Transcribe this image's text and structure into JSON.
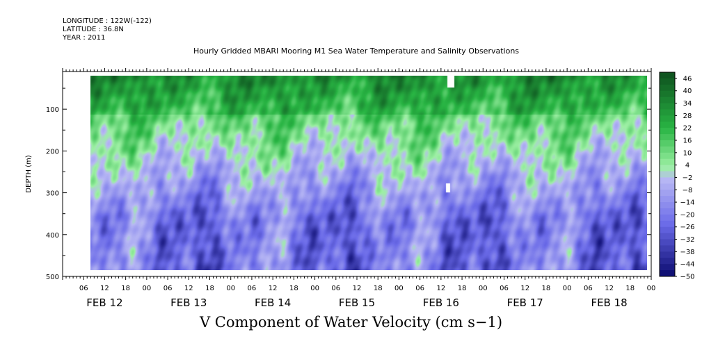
{
  "meta": {
    "longitude": "LONGITUDE : 122W(-122)",
    "latitude": "LATITUDE : 36.8N",
    "year": "YEAR : 2011"
  },
  "title": "Hourly Gridded MBARI Mooring M1 Sea Water Temperature and Salinity Observations",
  "xlabel": "V Component of Water Velocity (cm s−1)",
  "ylabel": "DEPTH (m)",
  "colors": {
    "positive_max": "#0d4f1e",
    "positive_mid": "#28b443",
    "positive_low": "#9df0a4",
    "negative_low": "#b8b8f4",
    "negative_mid": "#6a6ae8",
    "negative_max": "#0a0a6e"
  },
  "chart_data": {
    "type": "heatmap",
    "title": "Hourly Gridded MBARI Mooring M1 Sea Water Temperature and Salinity Observations",
    "xlabel": "V Component of Water Velocity (cm s−1)",
    "ylabel": "DEPTH (m)",
    "y_range": [
      10,
      500
    ],
    "y_ticks": [
      100,
      200,
      300,
      400,
      500
    ],
    "y_tick_labels": [
      "100",
      "200",
      "300",
      "400",
      "500"
    ],
    "x_hour_labels": [
      "06",
      "12",
      "18",
      "00",
      "06",
      "12",
      "18",
      "00",
      "06",
      "12",
      "18",
      "00",
      "06",
      "12",
      "18",
      "00",
      "06",
      "12",
      "18",
      "00",
      "06",
      "12",
      "18",
      "00",
      "06",
      "12",
      "18",
      "00"
    ],
    "x_day_labels": [
      "FEB 12",
      "FEB 13",
      "FEB 14",
      "FEB 15",
      "FEB 16",
      "FEB 17",
      "FEB 18"
    ],
    "colorbar": {
      "levels": [
        46,
        40,
        34,
        28,
        22,
        16,
        10,
        4,
        -2,
        -8,
        -14,
        -20,
        -26,
        -32,
        -38,
        -44,
        -50
      ],
      "range": [
        -50,
        49
      ]
    },
    "data_depth_range": [
      20,
      485
    ],
    "description_of_field": "Upper ~150 m predominantly positive (5 to 30 cm s-1, green); below ~250 m predominantly negative (-5 to -20 cm s-1, blue-lavender) with alternating positive bands over FEB 12-18, 2011."
  }
}
